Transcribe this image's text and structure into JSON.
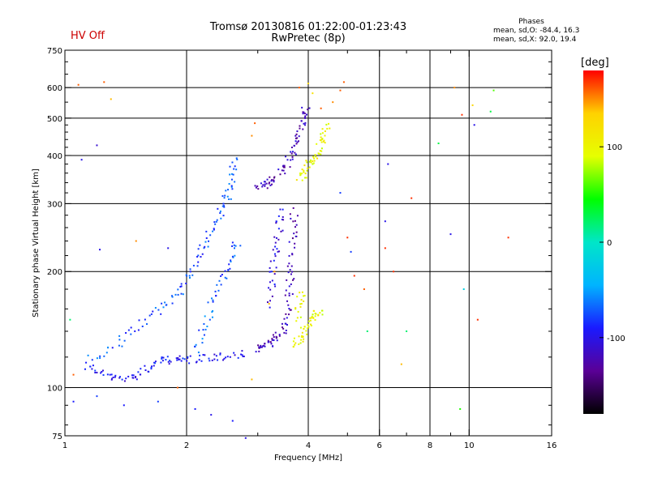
{
  "header": {
    "status": "HV Off",
    "title": "Tromsø 20130816 01:22:00-01:23:43",
    "subtitle": "RwPretec (8p)",
    "phases_label": "Phases",
    "phases_o": "mean, sd,O: -84.4, 16.3",
    "phases_x": "mean, sd,X:  92.0, 19.4"
  },
  "colorbar": {
    "unit": "[deg]",
    "ticks": [
      {
        "value": 100,
        "label": "100"
      },
      {
        "value": 0,
        "label": "0"
      },
      {
        "value": -100,
        "label": "-100"
      }
    ],
    "range": [
      -180,
      180
    ],
    "colors": [
      "#000000",
      "#5a0096",
      "#1a1aff",
      "#00b4ff",
      "#00e6c8",
      "#00ff00",
      "#e6ff00",
      "#ffd200",
      "#ff0000"
    ]
  },
  "chart_data": {
    "type": "scatter",
    "xlabel": "Frequency [MHz]",
    "ylabel": "Stationary phase Virtual Height [km]",
    "xscale": "log",
    "yscale": "log",
    "xlim": [
      1,
      16
    ],
    "ylim": [
      75,
      750
    ],
    "xticks": [
      {
        "value": 1,
        "label": "1"
      },
      {
        "value": 2,
        "label": "2"
      },
      {
        "value": 4,
        "label": "4"
      },
      {
        "value": 6,
        "label": "6"
      },
      {
        "value": 8,
        "label": "8"
      },
      {
        "value": 10,
        "label": "10"
      },
      {
        "value": 16,
        "label": "16"
      }
    ],
    "yticks": [
      {
        "value": 75,
        "label": "75"
      },
      {
        "value": 100,
        "label": "100"
      },
      {
        "value": 200,
        "label": "200"
      },
      {
        "value": 300,
        "label": "300"
      },
      {
        "value": 400,
        "label": "400"
      },
      {
        "value": 500,
        "label": "500"
      },
      {
        "value": 600,
        "label": "600"
      },
      {
        "value": 750,
        "label": "750"
      }
    ],
    "grid": true,
    "grid_x": [
      2,
      4,
      6,
      8,
      10
    ],
    "grid_y": [
      100,
      200,
      300,
      400,
      500,
      600
    ],
    "minor_x": [
      3,
      5,
      7,
      9
    ],
    "traces": [
      {
        "mode": "O",
        "phase": -95,
        "points": [
          [
            1.12,
            115
          ],
          [
            1.2,
            110
          ],
          [
            1.3,
            106
          ],
          [
            1.4,
            105
          ],
          [
            1.5,
            108
          ],
          [
            1.6,
            112
          ],
          [
            1.7,
            116
          ],
          [
            1.8,
            118
          ],
          [
            1.9,
            118
          ],
          [
            2.0,
            118
          ],
          [
            2.2,
            119
          ],
          [
            2.4,
            120
          ],
          [
            2.6,
            121
          ],
          [
            2.8,
            122
          ]
        ]
      },
      {
        "mode": "O",
        "phase": -75,
        "points": [
          [
            1.15,
            118
          ],
          [
            1.3,
            125
          ],
          [
            1.45,
            138
          ],
          [
            1.6,
            150
          ],
          [
            1.75,
            162
          ],
          [
            1.9,
            175
          ],
          [
            2.0,
            190
          ],
          [
            2.1,
            210
          ],
          [
            2.2,
            230
          ],
          [
            2.3,
            255
          ],
          [
            2.4,
            280
          ],
          [
            2.5,
            305
          ],
          [
            2.55,
            330
          ],
          [
            2.6,
            360
          ],
          [
            2.62,
            390
          ]
        ]
      },
      {
        "mode": "O",
        "phase": -70,
        "points": [
          [
            2.1,
            125
          ],
          [
            2.2,
            140
          ],
          [
            2.3,
            160
          ],
          [
            2.4,
            180
          ],
          [
            2.5,
            200
          ],
          [
            2.6,
            220
          ],
          [
            2.7,
            240
          ]
        ]
      },
      {
        "mode": "O",
        "phase": -120,
        "points": [
          [
            3.0,
            125
          ],
          [
            3.1,
            128
          ],
          [
            3.2,
            130
          ],
          [
            3.3,
            133
          ],
          [
            3.4,
            138
          ],
          [
            3.5,
            145
          ],
          [
            3.55,
            160
          ],
          [
            3.6,
            180
          ],
          [
            3.62,
            200
          ],
          [
            3.65,
            230
          ],
          [
            3.68,
            260
          ],
          [
            3.7,
            290
          ]
        ]
      },
      {
        "mode": "O",
        "phase": -105,
        "points": [
          [
            3.2,
            165
          ],
          [
            3.25,
            190
          ],
          [
            3.3,
            215
          ],
          [
            3.35,
            240
          ],
          [
            3.4,
            265
          ],
          [
            3.45,
            290
          ]
        ]
      },
      {
        "mode": "O",
        "phase": -120,
        "points": [
          [
            3.0,
            330
          ],
          [
            3.1,
            335
          ],
          [
            3.2,
            340
          ],
          [
            3.35,
            350
          ],
          [
            3.5,
            370
          ],
          [
            3.6,
            395
          ],
          [
            3.7,
            420
          ],
          [
            3.8,
            450
          ],
          [
            3.85,
            480
          ],
          [
            3.9,
            510
          ],
          [
            3.95,
            540
          ]
        ]
      },
      {
        "mode": "X",
        "phase": 100,
        "points": [
          [
            3.7,
            130
          ],
          [
            3.8,
            133
          ],
          [
            3.9,
            138
          ],
          [
            4.0,
            145
          ],
          [
            4.1,
            150
          ],
          [
            4.2,
            155
          ],
          [
            4.3,
            158
          ]
        ]
      },
      {
        "mode": "X",
        "phase": 100,
        "points": [
          [
            3.75,
            150
          ],
          [
            3.8,
            165
          ],
          [
            3.85,
            180
          ]
        ]
      },
      {
        "mode": "X",
        "phase": 100,
        "points": [
          [
            3.8,
            350
          ],
          [
            3.9,
            360
          ],
          [
            4.0,
            375
          ],
          [
            4.1,
            390
          ],
          [
            4.2,
            405
          ],
          [
            4.3,
            430
          ],
          [
            4.4,
            455
          ],
          [
            4.5,
            480
          ]
        ]
      }
    ],
    "scattered_points": [
      {
        "f": 1.08,
        "h": 610,
        "phase": 160
      },
      {
        "f": 1.25,
        "h": 620,
        "phase": 160
      },
      {
        "f": 1.3,
        "h": 560,
        "phase": 140
      },
      {
        "f": 1.1,
        "h": 390,
        "phase": -100
      },
      {
        "f": 1.2,
        "h": 425,
        "phase": -110
      },
      {
        "f": 1.22,
        "h": 228,
        "phase": -100
      },
      {
        "f": 1.5,
        "h": 240,
        "phase": 150
      },
      {
        "f": 1.8,
        "h": 230,
        "phase": -100
      },
      {
        "f": 1.05,
        "h": 92,
        "phase": -90
      },
      {
        "f": 1.2,
        "h": 95,
        "phase": -80
      },
      {
        "f": 1.4,
        "h": 90,
        "phase": -90
      },
      {
        "f": 1.7,
        "h": 92,
        "phase": -80
      },
      {
        "f": 2.1,
        "h": 88,
        "phase": -90
      },
      {
        "f": 2.3,
        "h": 85,
        "phase": -100
      },
      {
        "f": 2.6,
        "h": 82,
        "phase": -90
      },
      {
        "f": 2.8,
        "h": 74,
        "phase": -100
      },
      {
        "f": 1.05,
        "h": 108,
        "phase": 160
      },
      {
        "f": 1.03,
        "h": 150,
        "phase": 20
      },
      {
        "f": 1.9,
        "h": 100,
        "phase": 160
      },
      {
        "f": 2.9,
        "h": 105,
        "phase": 140
      },
      {
        "f": 3.2,
        "h": 165,
        "phase": 140
      },
      {
        "f": 3.3,
        "h": 200,
        "phase": 150
      },
      {
        "f": 2.9,
        "h": 450,
        "phase": 150
      },
      {
        "f": 2.95,
        "h": 485,
        "phase": 160
      },
      {
        "f": 3.8,
        "h": 600,
        "phase": 160
      },
      {
        "f": 4.0,
        "h": 615,
        "phase": 130
      },
      {
        "f": 4.1,
        "h": 580,
        "phase": 120
      },
      {
        "f": 4.3,
        "h": 530,
        "phase": 160
      },
      {
        "f": 4.6,
        "h": 550,
        "phase": 150
      },
      {
        "f": 4.8,
        "h": 590,
        "phase": 160
      },
      {
        "f": 4.9,
        "h": 620,
        "phase": 160
      },
      {
        "f": 4.8,
        "h": 320,
        "phase": -80
      },
      {
        "f": 5.0,
        "h": 245,
        "phase": 170
      },
      {
        "f": 5.1,
        "h": 225,
        "phase": -80
      },
      {
        "f": 5.2,
        "h": 195,
        "phase": 170
      },
      {
        "f": 5.5,
        "h": 180,
        "phase": 160
      },
      {
        "f": 5.6,
        "h": 140,
        "phase": 20
      },
      {
        "f": 6.3,
        "h": 380,
        "phase": -100
      },
      {
        "f": 6.2,
        "h": 270,
        "phase": -100
      },
      {
        "f": 6.2,
        "h": 230,
        "phase": 170
      },
      {
        "f": 6.5,
        "h": 200,
        "phase": 170
      },
      {
        "f": 7.0,
        "h": 140,
        "phase": 20
      },
      {
        "f": 6.8,
        "h": 115,
        "phase": 140
      },
      {
        "f": 7.2,
        "h": 310,
        "phase": 170
      },
      {
        "f": 8.4,
        "h": 430,
        "phase": 30
      },
      {
        "f": 9.0,
        "h": 250,
        "phase": -100
      },
      {
        "f": 9.2,
        "h": 600,
        "phase": 150
      },
      {
        "f": 9.6,
        "h": 510,
        "phase": 170
      },
      {
        "f": 10.2,
        "h": 540,
        "phase": 130
      },
      {
        "f": 10.3,
        "h": 480,
        "phase": -100
      },
      {
        "f": 11.5,
        "h": 590,
        "phase": 60
      },
      {
        "f": 11.3,
        "h": 520,
        "phase": 30
      },
      {
        "f": 9.7,
        "h": 180,
        "phase": -20
      },
      {
        "f": 9.5,
        "h": 88,
        "phase": 50
      },
      {
        "f": 10.5,
        "h": 150,
        "phase": 170
      },
      {
        "f": 12.5,
        "h": 245,
        "phase": 170
      }
    ]
  }
}
